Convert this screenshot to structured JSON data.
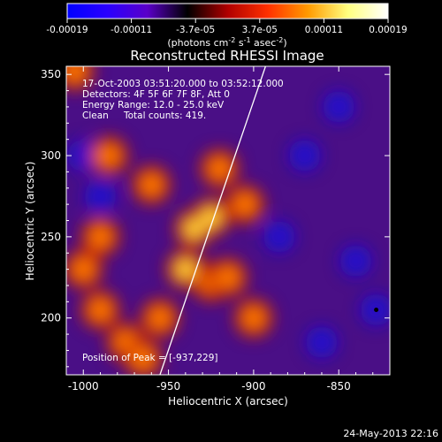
{
  "colorbar": {
    "tick_labels": [
      "-0.00019",
      "-0.00011",
      "-3.7e-05",
      "3.7e-05",
      "0.00011",
      "0.00019"
    ],
    "unit_main": "(photons cm",
    "unit_exp1": "-2",
    "unit_mid": " s",
    "unit_exp2": "-1",
    "unit_tail": " asec",
    "unit_exp3": "-2",
    "unit_close": ")",
    "range": [
      -0.00019,
      0.00019
    ],
    "colormap": [
      "#0000ff",
      "#2a00ff",
      "#5a00c8",
      "#000000",
      "#b00000",
      "#ff3000",
      "#ff9a00",
      "#ffff80",
      "#ffffff"
    ]
  },
  "chart_data": {
    "type": "heatmap",
    "title": "Reconstructed RHESSI Image",
    "xlabel": "Heliocentric X (arcsec)",
    "ylabel": "Heliocentric Y (arcsec)",
    "xlim": [
      -1010,
      -820
    ],
    "ylim": [
      165,
      355
    ],
    "x_ticks": [
      -1000,
      -950,
      -900,
      -850
    ],
    "y_ticks": [
      200,
      250,
      300,
      350
    ],
    "x_tick_labels": [
      "-1000",
      "-950",
      "-900",
      "-850"
    ],
    "y_tick_labels": [
      "200",
      "250",
      "300",
      "350"
    ],
    "peak": [
      -937,
      229
    ],
    "limb_line": [
      [
        -955,
        165
      ],
      [
        -893,
        355
      ]
    ],
    "blob_hot": [
      [
        -1005,
        352
      ],
      [
        -985,
        300
      ],
      [
        -960,
        282
      ],
      [
        -935,
        255
      ],
      [
        -925,
        262
      ],
      [
        -940,
        230
      ],
      [
        -925,
        222
      ],
      [
        -990,
        250
      ],
      [
        -1000,
        230
      ],
      [
        -990,
        205
      ],
      [
        -975,
        185
      ],
      [
        -955,
        200
      ],
      [
        -965,
        175
      ],
      [
        -900,
        200
      ],
      [
        -915,
        225
      ],
      [
        -905,
        270
      ],
      [
        -920,
        292
      ]
    ],
    "blob_cold": [
      [
        -870,
        300
      ],
      [
        -885,
        250
      ],
      [
        -840,
        235
      ],
      [
        -828,
        205
      ],
      [
        -860,
        185
      ],
      [
        -990,
        275
      ],
      [
        -850,
        330
      ],
      [
        -1000,
        300
      ]
    ]
  },
  "annotations": {
    "time_range": "17-Oct-2003 03:51:20.000 to 03:52:12.000",
    "detectors": "Detectors: 4F 5F 6F 7F 8F, Att 0",
    "energy_range": "Energy Range: 12.0 - 25.0 keV",
    "clean_label": "Clean",
    "total_counts": "Total counts: 419.",
    "peak_position": "Position of Peak = [-937,229]"
  },
  "footer_date": "24-May-2013 22:16"
}
